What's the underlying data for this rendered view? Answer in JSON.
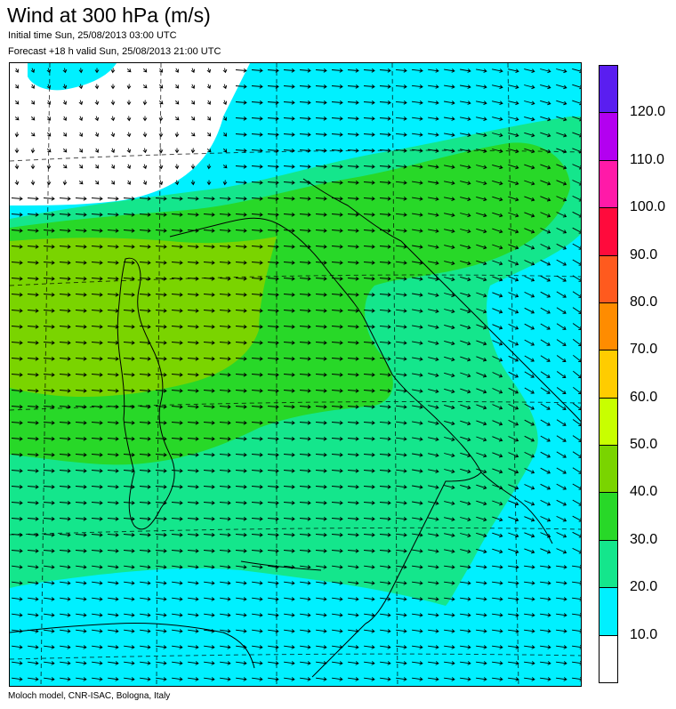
{
  "header": {
    "title": "Wind at 300 hPa (m/s)",
    "initial_time": "Initial time  Sun, 25/08/2013 03:00 UTC",
    "forecast": "Forecast +18 h valid  Sun, 25/08/2013 21:00 UTC"
  },
  "footer": {
    "credit": "Moloch model, CNR-ISAC, Bologna, Italy"
  },
  "legend": {
    "labels": [
      "120.0",
      "110.0",
      "100.0",
      "90.0",
      "80.0",
      "70.0",
      "60.0",
      "50.0",
      "40.0",
      "30.0",
      "20.0",
      "10.0"
    ],
    "colors": [
      "#5a1ef0",
      "#b300f0",
      "#ff1aa8",
      "#ff0a3c",
      "#ff5a1e",
      "#ff8c00",
      "#ffcc00",
      "#c8ff00",
      "#7ad400",
      "#28d828",
      "#14e68c",
      "#00f0ff",
      "#ffffff"
    ]
  },
  "map": {
    "field_colors": {
      "calm": "#ffffff",
      "cyan": "#00f0ff",
      "teal": "#14e68c",
      "green": "#28d828",
      "lime": "#7ad400"
    },
    "flow": "mostly westerly across Italy, curving south-east over the Balkans"
  }
}
